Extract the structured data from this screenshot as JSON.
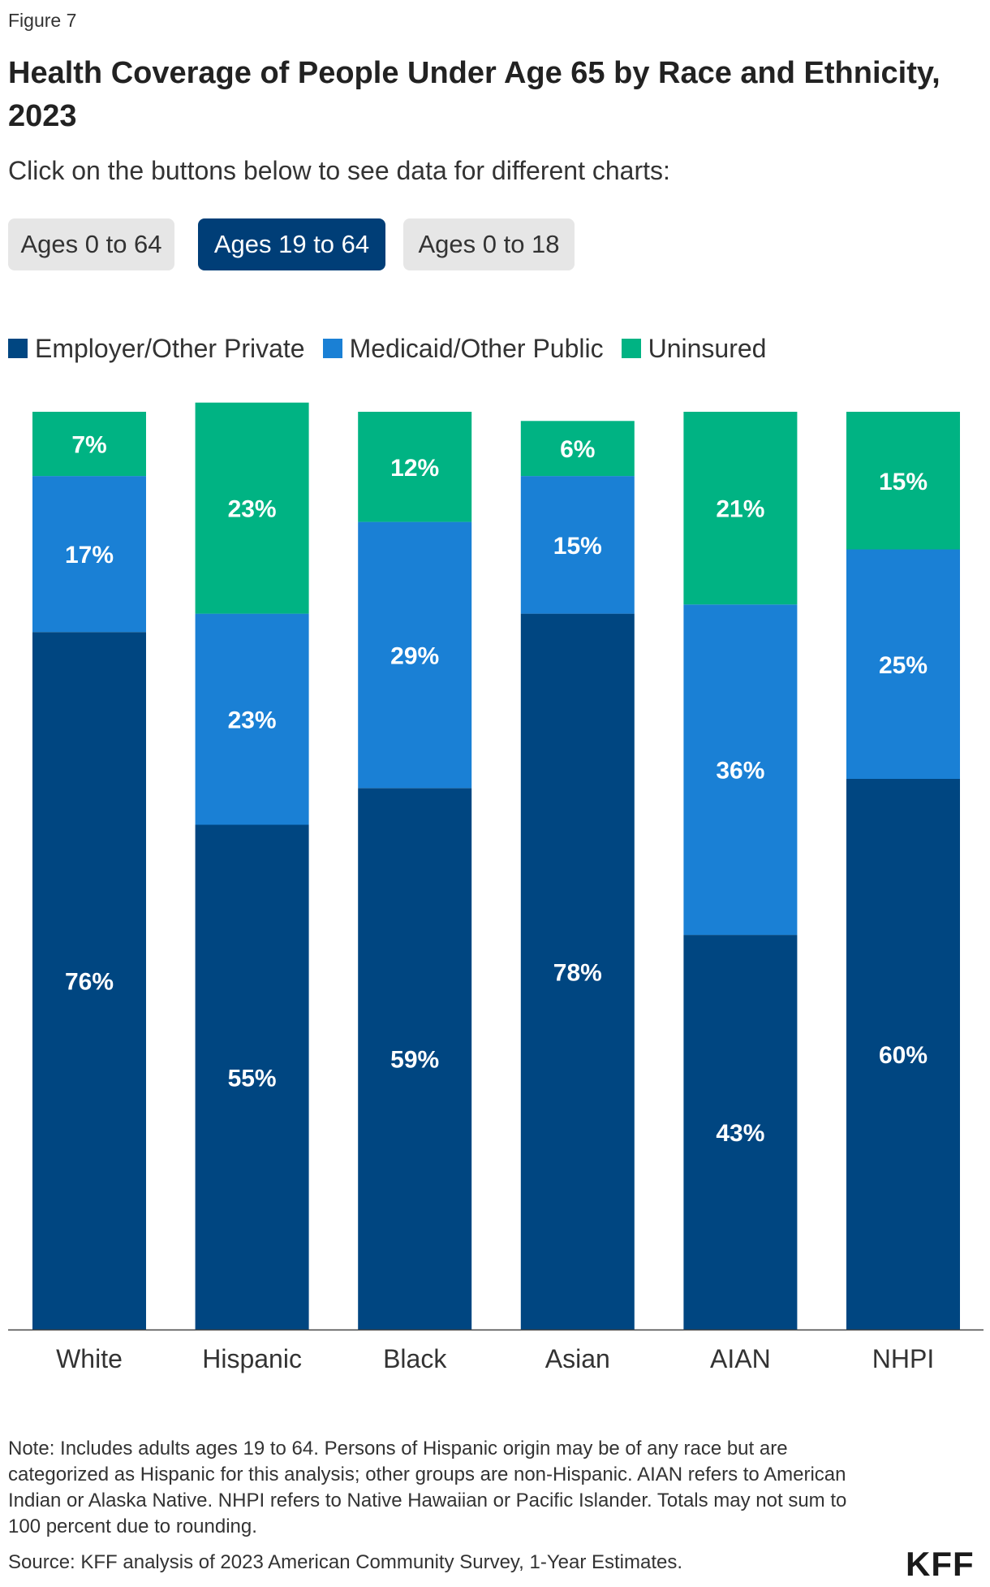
{
  "figure_label": "Figure 7",
  "title": "Health Coverage of People Under Age 65 by Race and Ethnicity, 2023",
  "instructions": "Click on the buttons below to see data for different charts:",
  "buttons": [
    {
      "label": "Ages 0 to 64",
      "active": false
    },
    {
      "label": "Ages 19 to 64",
      "active": true
    },
    {
      "label": "Ages 0 to 18",
      "active": false
    }
  ],
  "chart_data": {
    "type": "bar",
    "stacked": true,
    "title": "Health Coverage of People Under Age 65 by Race and Ethnicity, 2023",
    "xlabel": "",
    "ylabel": "",
    "ylim": [
      0,
      100
    ],
    "categories": [
      "White",
      "Hispanic",
      "Black",
      "Asian",
      "AIAN",
      "NHPI"
    ],
    "series": [
      {
        "name": "Employer/Other Private",
        "color": "#004681",
        "values": [
          76,
          55,
          59,
          78,
          43,
          60
        ]
      },
      {
        "name": "Medicaid/Other Public",
        "color": "#1a80d5",
        "values": [
          17,
          23,
          29,
          15,
          36,
          25
        ]
      },
      {
        "name": "Uninsured",
        "color": "#00b383",
        "values": [
          7,
          23,
          12,
          6,
          21,
          15
        ]
      }
    ],
    "legend": "top-left",
    "grid": false,
    "data_labels": true
  },
  "note": "Note: Includes adults ages 19 to 64. Persons of Hispanic origin may be of any race but are categorized as Hispanic for this analysis; other groups are non-Hispanic. AIAN refers to American Indian or Alaska Native. NHPI refers to Native Hawaiian or Pacific Islander. Totals may not sum to 100 percent due to rounding.",
  "source": "Source: KFF analysis of 2023 American Community Survey, 1-Year Estimates.",
  "logo": "KFF"
}
